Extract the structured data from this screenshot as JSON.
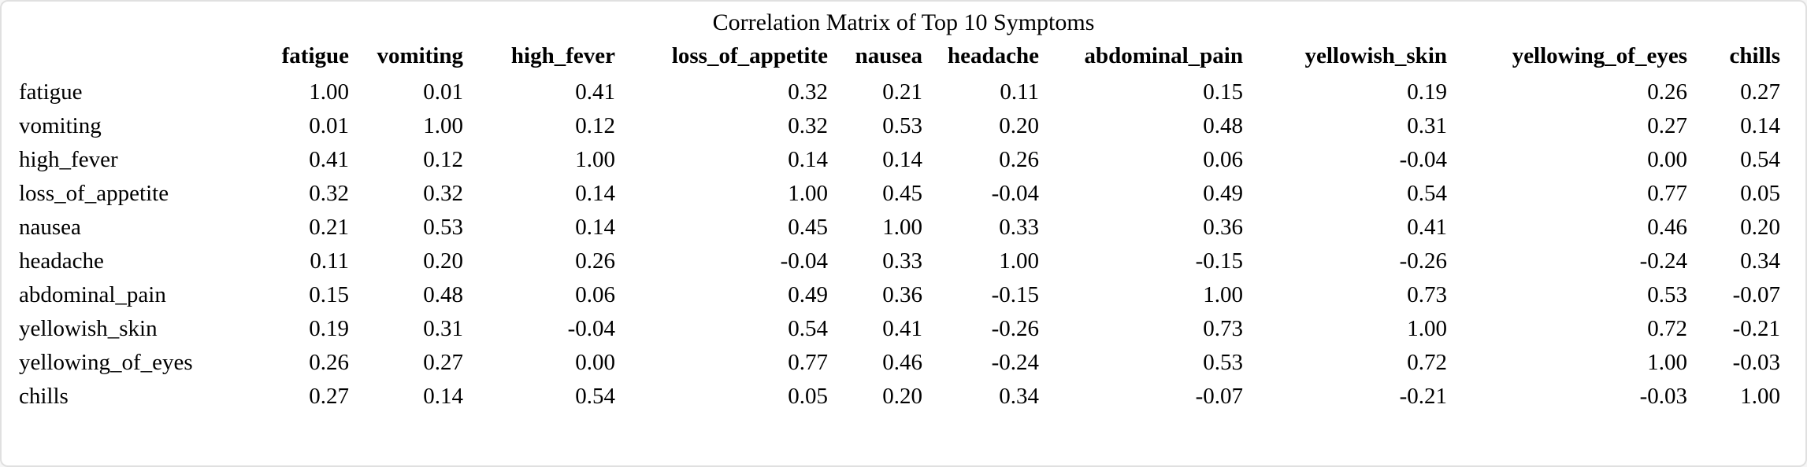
{
  "card": {
    "background_color": "#ffffff",
    "border_color": "#e0e0e0",
    "text_color": "#000000"
  },
  "chart_data": {
    "type": "table",
    "title": "Correlation Matrix of Top 10 Symptoms",
    "value_format": "2 decimal places",
    "layout": {
      "header_style": "bold, right-aligned",
      "row_labels": "left-aligned",
      "values": "right-aligned"
    },
    "columns": [
      "fatigue",
      "vomiting",
      "high_fever",
      "loss_of_appetite",
      "nausea",
      "headache",
      "abdominal_pain",
      "yellowish_skin",
      "yellowing_of_eyes",
      "chills"
    ],
    "rows": [
      "fatigue",
      "vomiting",
      "high_fever",
      "loss_of_appetite",
      "nausea",
      "headache",
      "abdominal_pain",
      "yellowish_skin",
      "yellowing_of_eyes",
      "chills"
    ],
    "matrix": [
      [
        1.0,
        0.01,
        0.41,
        0.32,
        0.21,
        0.11,
        0.15,
        0.19,
        0.26,
        0.27
      ],
      [
        0.01,
        1.0,
        0.12,
        0.32,
        0.53,
        0.2,
        0.48,
        0.31,
        0.27,
        0.14
      ],
      [
        0.41,
        0.12,
        1.0,
        0.14,
        0.14,
        0.26,
        0.06,
        -0.04,
        0.0,
        0.54
      ],
      [
        0.32,
        0.32,
        0.14,
        1.0,
        0.45,
        -0.04,
        0.49,
        0.54,
        0.77,
        0.05
      ],
      [
        0.21,
        0.53,
        0.14,
        0.45,
        1.0,
        0.33,
        0.36,
        0.41,
        0.46,
        0.2
      ],
      [
        0.11,
        0.2,
        0.26,
        -0.04,
        0.33,
        1.0,
        -0.15,
        -0.26,
        -0.24,
        0.34
      ],
      [
        0.15,
        0.48,
        0.06,
        0.49,
        0.36,
        -0.15,
        1.0,
        0.73,
        0.53,
        -0.07
      ],
      [
        0.19,
        0.31,
        -0.04,
        0.54,
        0.41,
        -0.26,
        0.73,
        1.0,
        0.72,
        -0.21
      ],
      [
        0.26,
        0.27,
        0.0,
        0.77,
        0.46,
        -0.24,
        0.53,
        0.72,
        1.0,
        -0.03
      ],
      [
        0.27,
        0.14,
        0.54,
        0.05,
        0.2,
        0.34,
        -0.07,
        -0.21,
        -0.03,
        1.0
      ]
    ]
  }
}
